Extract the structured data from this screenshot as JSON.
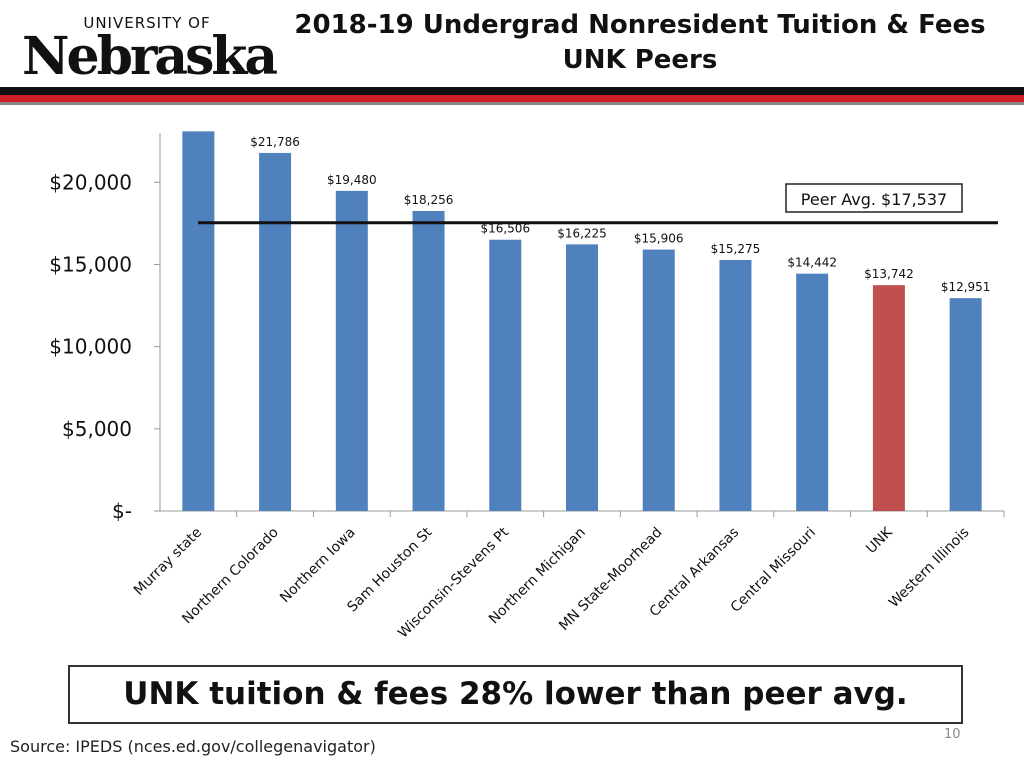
{
  "header": {
    "logo_top": "UNIVERSITY OF",
    "logo_word": "Nebraska",
    "title_line1": "2018-19 Undergrad Nonresident Tuition & Fees",
    "title_line2": "UNK Peers"
  },
  "colors": {
    "bar": "#4f81bd",
    "highlight": "#c0504d",
    "avg_line": "#111111",
    "brand_red": "#cf1d2a"
  },
  "chart_data": {
    "type": "bar",
    "title": "",
    "xlabel": "",
    "ylabel": "",
    "ylim": [
      0,
      23000
    ],
    "ytick_values": [
      0,
      5000,
      10000,
      15000,
      20000
    ],
    "ytick_labels": [
      "$-",
      "$5,000",
      "$10,000",
      "$15,000",
      "$20,000"
    ],
    "categories": [
      "Murray state",
      "Northern Colorado",
      "Northern Iowa",
      "Sam Houston St",
      "Wisconsin-Stevens Pt",
      "Northern Michigan",
      "MN State-Moorhead",
      "Central Arkansas",
      "Central Missouri",
      "UNK",
      "Western Illinois"
    ],
    "values": [
      23100,
      21786,
      19480,
      18256,
      16506,
      16225,
      15906,
      15275,
      14442,
      13742,
      12951
    ],
    "data_labels": [
      "",
      "$21,786",
      "$19,480",
      "$18,256",
      "$16,506",
      "$16,225",
      "$15,906",
      "$15,275",
      "$14,442",
      "$13,742",
      "$12,951"
    ],
    "highlight_category": "UNK",
    "reference_line": {
      "value": 17537,
      "label": "Peer Avg. $17,537"
    },
    "grid": false,
    "legend": "none"
  },
  "callout": "UNK tuition & fees 28% lower than peer avg.",
  "source": "Source:  IPEDS (nces.ed.gov/collegenavigator)",
  "page_number": "10"
}
